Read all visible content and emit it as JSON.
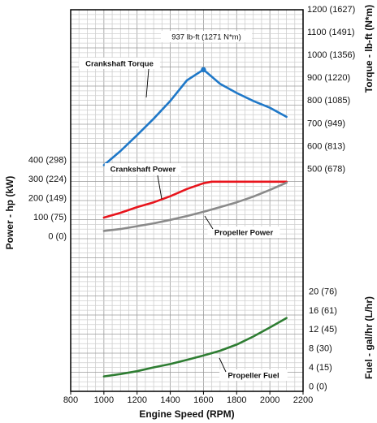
{
  "chart_data": {
    "type": "line",
    "x_axis": {
      "label": "Engine Speed (RPM)",
      "range": [
        800,
        2200
      ],
      "ticks": [
        "800",
        "1000",
        "1200",
        "1400",
        "1600",
        "1800",
        "2000",
        "2200"
      ]
    },
    "torque_axis": {
      "label": "Torque - lb-ft (N*m)",
      "range": [
        500,
        1200
      ],
      "ticks": [
        "500 (678)",
        "600 (813)",
        "700 (949)",
        "800 (1085)",
        "900 (1220)",
        "1000 (1356)",
        "1100 (1491)",
        "1200 (1627)"
      ]
    },
    "power_axis": {
      "label": "Power - hp (kW)",
      "range": [
        0,
        400
      ],
      "ticks": [
        "0 (0)",
        "100 (75)",
        "200 (149)",
        "300 (224)",
        "400 (298)"
      ]
    },
    "fuel_axis": {
      "label": "Fuel - gal/hr (L/hr)",
      "range": [
        0,
        20
      ],
      "ticks": [
        "0 (0)",
        "4 (15)",
        "8 (30)",
        "12 (45)",
        "16 (61)",
        "20 (76)"
      ]
    },
    "series": [
      {
        "name": "Crankshaft Torque",
        "axis": "torque",
        "color": "#1f78c8",
        "x": [
          1000,
          1100,
          1200,
          1300,
          1400,
          1500,
          1600,
          1700,
          1800,
          1900,
          2000,
          2100
        ],
        "values": [
          518,
          580,
          650,
          722,
          800,
          890,
          937,
          875,
          835,
          800,
          770,
          730
        ]
      },
      {
        "name": "Crankshaft Power",
        "axis": "power",
        "color": "#e8141c",
        "x": [
          1000,
          1100,
          1200,
          1300,
          1400,
          1500,
          1600,
          1650,
          1700,
          1800,
          1900,
          2000,
          2100
        ],
        "values": [
          100,
          125,
          155,
          180,
          212,
          250,
          280,
          288,
          288,
          288,
          288,
          288,
          288
        ]
      },
      {
        "name": "Propeller Power",
        "axis": "power",
        "color": "#8a8a8a",
        "x": [
          1000,
          1100,
          1200,
          1300,
          1400,
          1500,
          1600,
          1700,
          1800,
          1900,
          2000,
          2100
        ],
        "values": [
          30,
          40,
          55,
          70,
          88,
          108,
          130,
          155,
          180,
          210,
          245,
          283
        ]
      },
      {
        "name": "Propeller Fuel",
        "axis": "fuel",
        "color": "#2e7d32",
        "x": [
          1000,
          1100,
          1200,
          1300,
          1400,
          1500,
          1600,
          1700,
          1800,
          1900,
          2000,
          2100
        ],
        "values": [
          2.2,
          2.7,
          3.3,
          4.1,
          4.8,
          5.7,
          6.6,
          7.6,
          8.9,
          10.6,
          12.5,
          14.5
        ]
      }
    ],
    "peak_marker": {
      "series": "Crankshaft Torque",
      "x": 1600,
      "y": 937,
      "label": "937 lb-ft (1271 N*m)"
    },
    "annotations": [
      "Crankshaft Torque",
      "Crankshaft Power",
      "Propeller Power",
      "Propeller Fuel"
    ],
    "grid": true,
    "legend": "none (inline labels)"
  }
}
